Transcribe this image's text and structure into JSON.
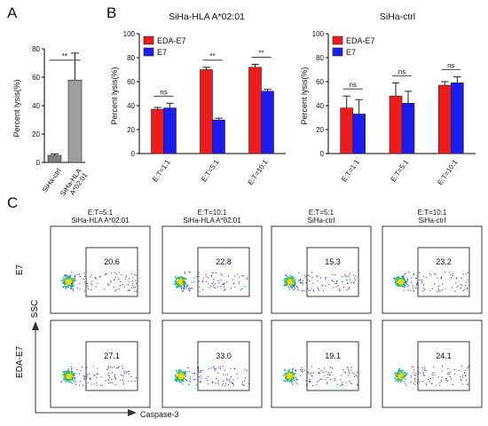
{
  "panels": {
    "a": "A",
    "b": "B",
    "c": "C"
  },
  "chart_data": [
    {
      "id": "A",
      "type": "bar",
      "title": "",
      "ylabel": "Percent lysis(%)",
      "ylim": [
        0,
        80
      ],
      "yticks": [
        0,
        20,
        40,
        60,
        80
      ],
      "categories": [
        "SiHa-ctrl",
        "SiHa-HLA A*02:01"
      ],
      "category_labels": [
        [
          "SiHa-ctrl"
        ],
        [
          "SiHa-HLA",
          "A*02:01"
        ]
      ],
      "values": [
        5,
        58
      ],
      "errors": [
        1,
        19
      ],
      "colors": [
        "#7f7f7f",
        "#9e9e9e"
      ],
      "significance": [
        {
          "from": 0,
          "to": 1,
          "label": "**"
        }
      ]
    },
    {
      "id": "B1",
      "type": "bar",
      "title": "SiHa-HLA A*02:01",
      "ylabel": "Percent lysis(%)",
      "ylim": [
        0,
        100
      ],
      "yticks": [
        0,
        20,
        40,
        60,
        80,
        100
      ],
      "categories": [
        "E:T=1:1",
        "E:T=5:1",
        "E:T=10:1"
      ],
      "series": [
        {
          "name": "EDA-E7",
          "color": "#ee1c1c",
          "values": [
            37,
            70,
            72
          ],
          "errors": [
            1.5,
            2,
            2.5
          ]
        },
        {
          "name": "E7",
          "color": "#1c1cee",
          "values": [
            38,
            28,
            52
          ],
          "errors": [
            4,
            1.5,
            1.5
          ]
        }
      ],
      "significance": [
        "ns",
        "**",
        "**"
      ],
      "legend": "top-left"
    },
    {
      "id": "B2",
      "type": "bar",
      "title": "SiHa-ctrl",
      "ylabel": "Percent lysis(%)",
      "ylim": [
        0,
        100
      ],
      "yticks": [
        0,
        20,
        40,
        60,
        80,
        100
      ],
      "categories": [
        "E:T=1:1",
        "E:T=5:1",
        "E:T=10:1"
      ],
      "series": [
        {
          "name": "EDA-E7",
          "color": "#ee1c1c",
          "values": [
            38,
            48,
            57
          ],
          "errors": [
            10,
            11,
            3
          ]
        },
        {
          "name": "E7",
          "color": "#1c1cee",
          "values": [
            33,
            42,
            59
          ],
          "errors": [
            12,
            10,
            5
          ]
        }
      ],
      "significance": [
        "ns",
        "ns",
        "ns"
      ],
      "legend": "top-left"
    }
  ],
  "facs": {
    "y_axis_label": "SSC",
    "x_axis_label": "Caspase-3",
    "row_labels": [
      "E7",
      "EDA-E7"
    ],
    "column_headers": [
      [
        "E:T=5:1",
        "SiHa-HLA A*02:01"
      ],
      [
        "E:T=10:1",
        "SiHa-HLA A*02:01"
      ],
      [
        "E:T=5:1",
        "SiHa-ctrl"
      ],
      [
        "E:T=10:1",
        "SiHa-ctrl"
      ]
    ],
    "gates": [
      [
        "20.6",
        "22.8",
        "15.3",
        "23.2"
      ],
      [
        "27.1",
        "33.0",
        "19.1",
        "24.1"
      ]
    ]
  }
}
